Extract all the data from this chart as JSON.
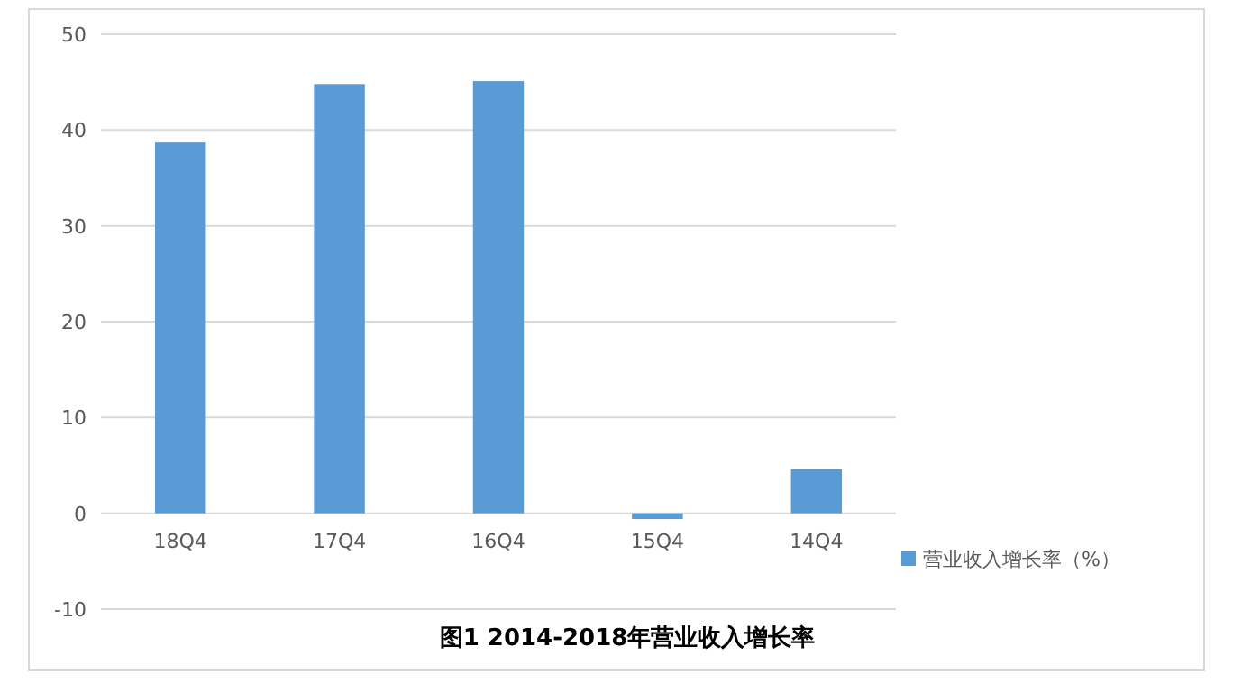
{
  "chart_data": {
    "type": "bar",
    "title": "图1 2014-2018年营业收入增长率",
    "categories": [
      "18Q4",
      "17Q4",
      "16Q4",
      "15Q4",
      "14Q4"
    ],
    "series": [
      {
        "name": "营业收入增长率（%）",
        "color": "#5b9bd5",
        "values": [
          38.7,
          44.8,
          45.1,
          -0.6,
          4.6
        ]
      }
    ],
    "ylim": [
      -10,
      50
    ],
    "yticks": [
      -10,
      0,
      10,
      20,
      30,
      40,
      50
    ],
    "grid": "y",
    "legend": "right"
  }
}
